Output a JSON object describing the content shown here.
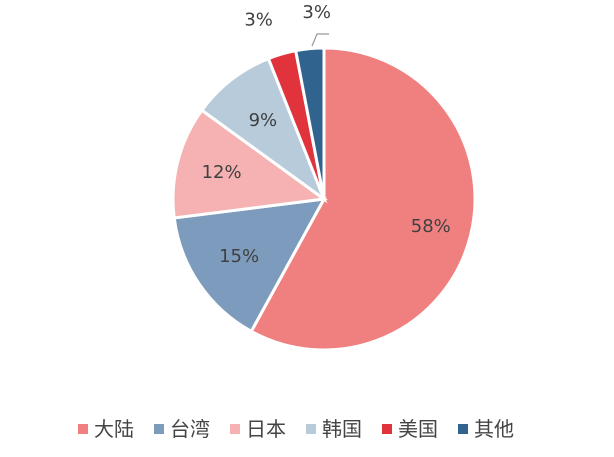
{
  "chart_data": {
    "type": "pie",
    "categories": [
      "大陆",
      "台湾",
      "日本",
      "韩国",
      "美国",
      "其他"
    ],
    "values": [
      58,
      15,
      12,
      9,
      3,
      3
    ],
    "value_labels": [
      "58%",
      "15%",
      "12%",
      "9%",
      "3%",
      "3%"
    ],
    "colors": [
      "#f08080",
      "#7d9cbd",
      "#f6b2b2",
      "#b8cbdb",
      "#e0333c",
      "#30638e"
    ],
    "legend_position": "bottom",
    "start": "top-clockwise"
  }
}
